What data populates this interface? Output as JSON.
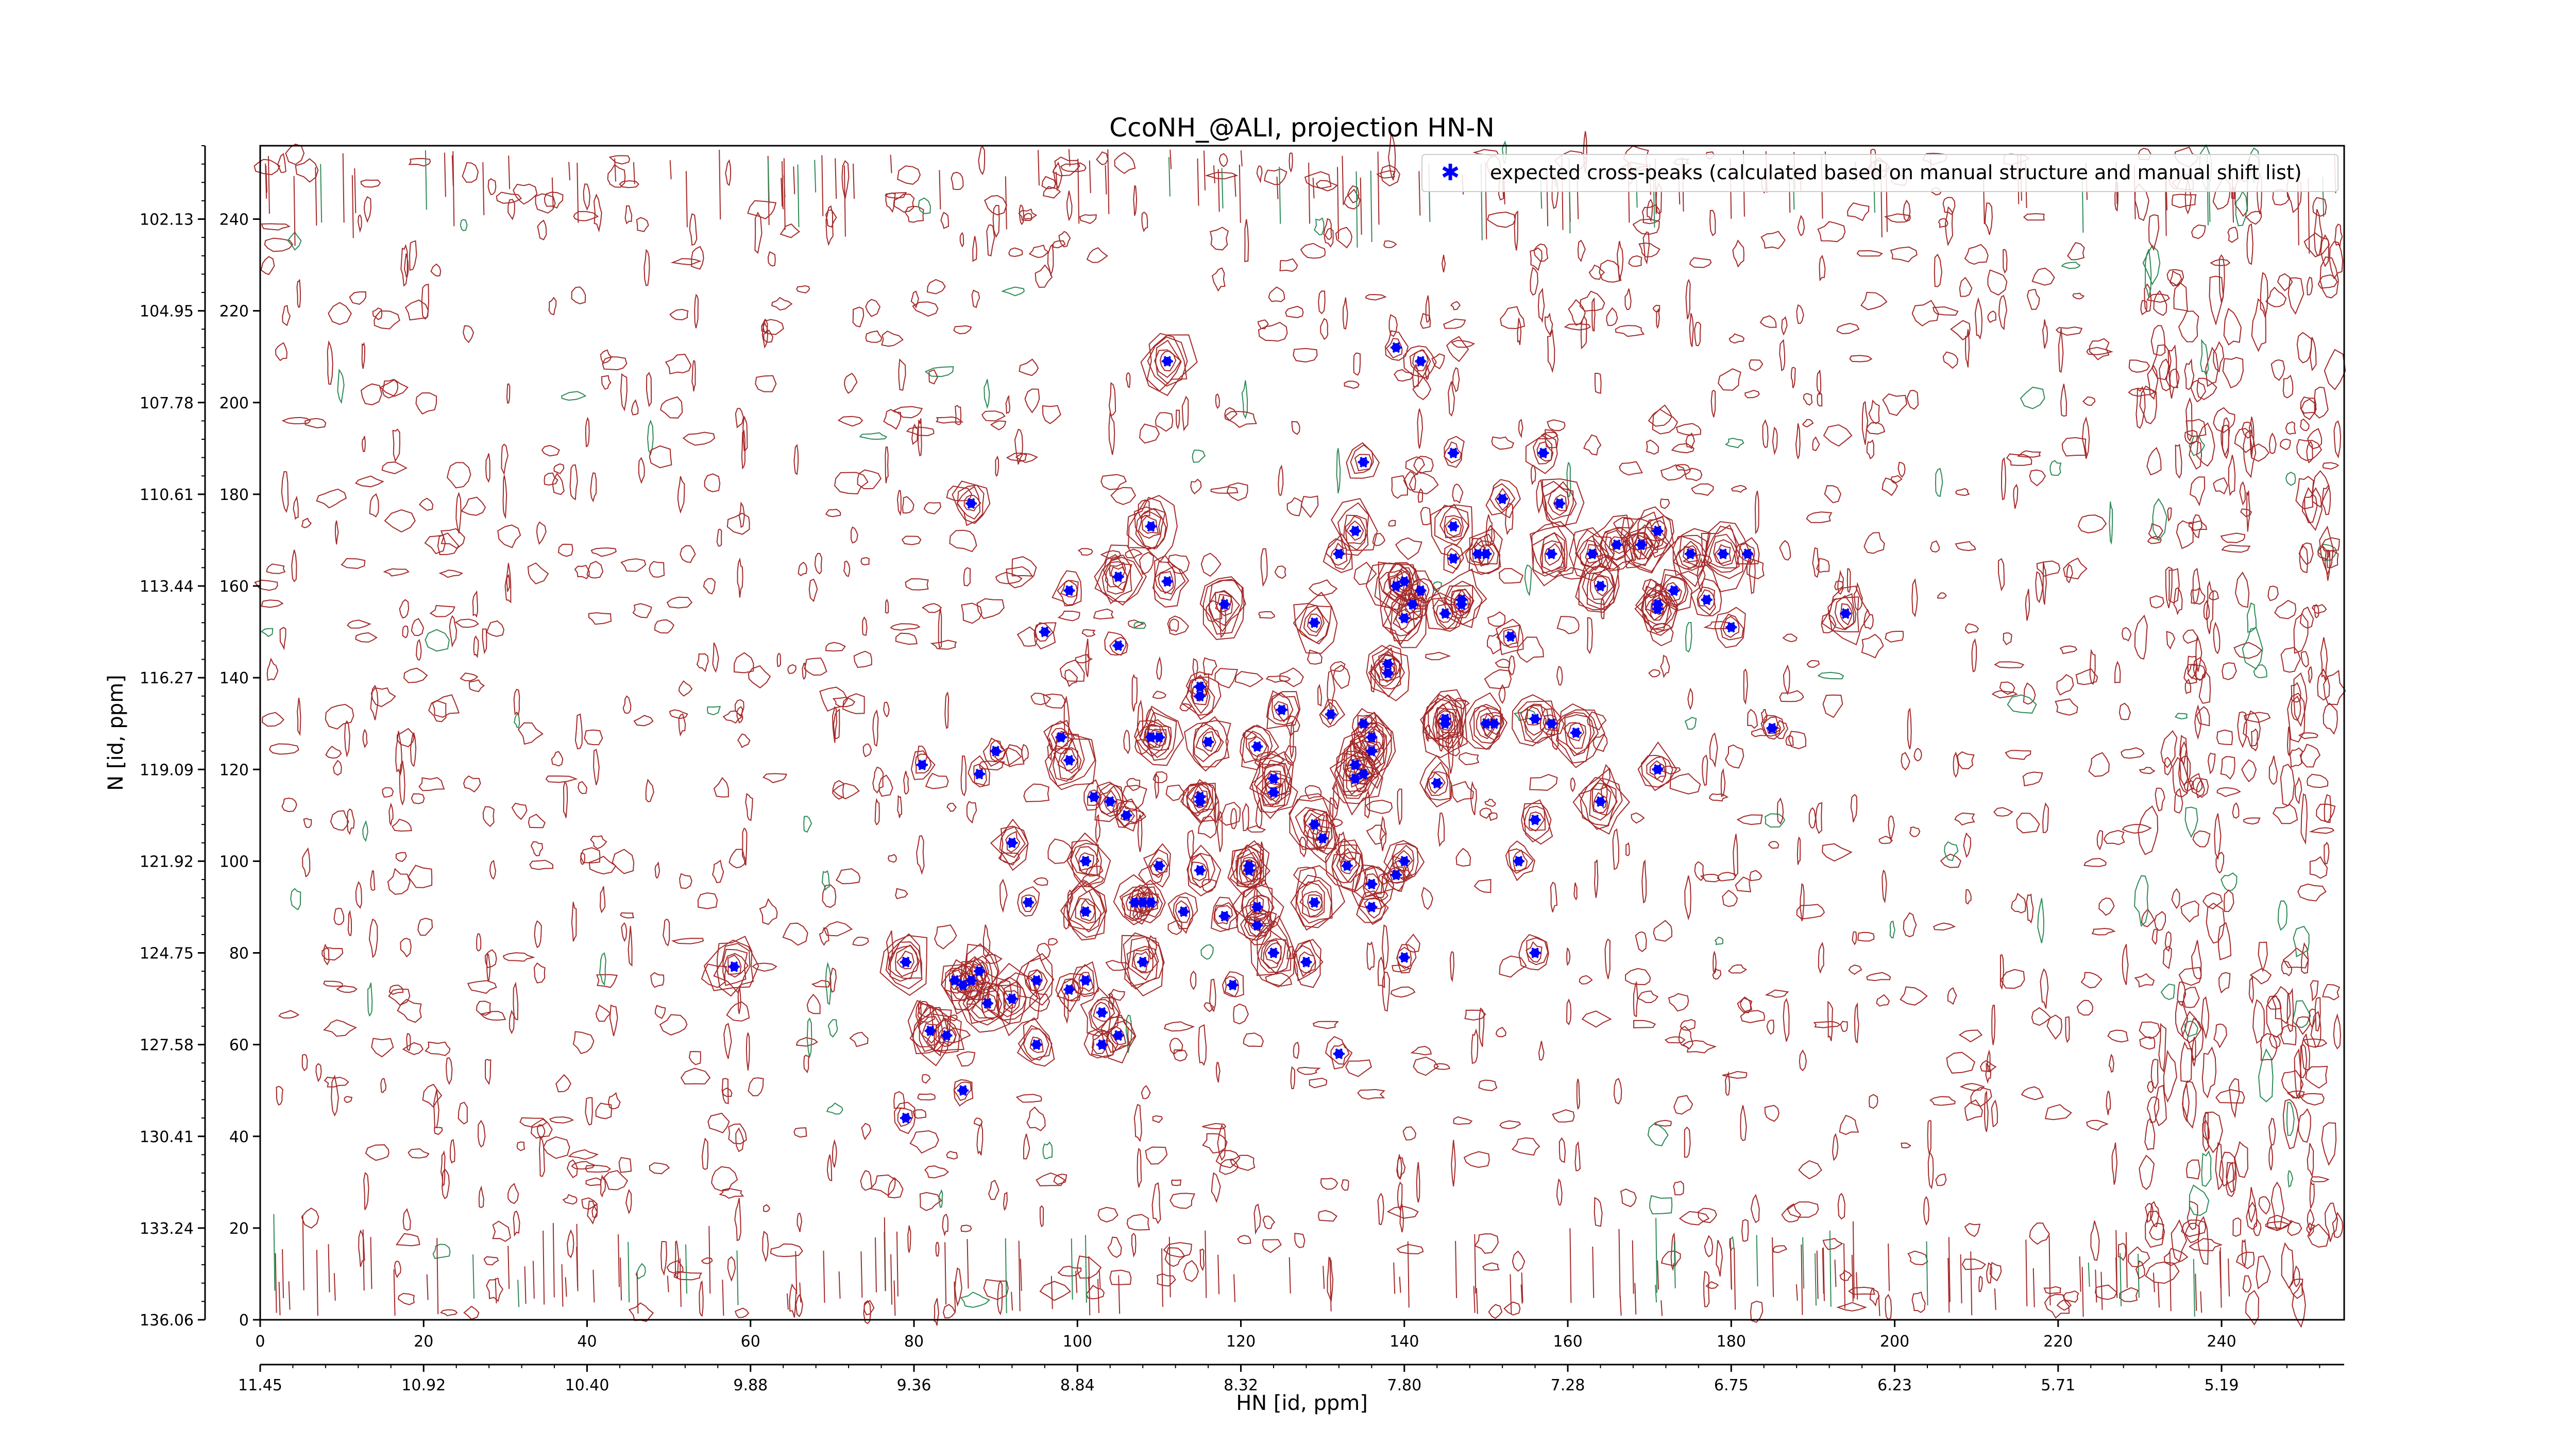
{
  "chart_data": {
    "type": "scatter",
    "title": "CcoNH_@ALI, projection HN-N",
    "xlabel": "HN [id, ppm]",
    "ylabel": "N [id, ppm]",
    "x_index_ticks": [
      "0",
      "20",
      "40",
      "60",
      "80",
      "100",
      "120",
      "140",
      "160",
      "180",
      "200",
      "220",
      "240"
    ],
    "x_ppm_ticks": [
      "11.45",
      "10.92",
      "10.40",
      "9.88",
      "9.36",
      "8.84",
      "8.32",
      "7.80",
      "7.28",
      "6.75",
      "6.23",
      "5.71",
      "5.19"
    ],
    "y_index_ticks": [
      "0",
      "20",
      "40",
      "60",
      "80",
      "100",
      "120",
      "140",
      "160",
      "180",
      "200",
      "220",
      "240"
    ],
    "y_ppm_ticks": [
      "136.06",
      "133.24",
      "130.41",
      "127.58",
      "124.75",
      "121.92",
      "119.09",
      "116.27",
      "113.44",
      "110.61",
      "107.78",
      "104.95",
      "102.13"
    ],
    "xlim": [
      0,
      255
    ],
    "ylim": [
      0,
      256
    ],
    "legend": {
      "label": "expected cross-peaks (calculated based on manual structure and manual shift list)",
      "placement": "top-right"
    },
    "colors": {
      "peaks": "#0000ff",
      "positive_contours": "#a52a2a",
      "negative_contours": "#2e8b57"
    },
    "series": [
      {
        "name": "expected cross-peaks (calculated based on manual structure and manual shift list)",
        "points": [
          [
            111,
            209
          ],
          [
            139,
            212
          ],
          [
            142,
            209
          ],
          [
            87,
            178
          ],
          [
            109,
            173
          ],
          [
            135,
            187
          ],
          [
            146,
            189
          ],
          [
            152,
            179
          ],
          [
            157,
            189
          ],
          [
            159,
            178
          ],
          [
            146,
            173
          ],
          [
            132,
            167
          ],
          [
            134,
            172
          ],
          [
            146,
            166
          ],
          [
            149,
            167
          ],
          [
            150,
            167
          ],
          [
            158,
            167
          ],
          [
            163,
            167
          ],
          [
            166,
            169
          ],
          [
            169,
            169
          ],
          [
            171,
            172
          ],
          [
            175,
            167
          ],
          [
            179,
            167
          ],
          [
            182,
            167
          ],
          [
            99,
            159
          ],
          [
            105,
            162
          ],
          [
            111,
            161
          ],
          [
            118,
            156
          ],
          [
            129,
            152
          ],
          [
            139,
            160
          ],
          [
            140,
            161
          ],
          [
            141,
            156
          ],
          [
            140,
            153
          ],
          [
            142,
            159
          ],
          [
            147,
            157
          ],
          [
            147,
            156
          ],
          [
            145,
            154
          ],
          [
            164,
            160
          ],
          [
            171,
            156
          ],
          [
            173,
            159
          ],
          [
            171,
            155
          ],
          [
            177,
            157
          ],
          [
            180,
            151
          ],
          [
            194,
            154
          ],
          [
            96,
            150
          ],
          [
            105,
            147
          ],
          [
            153,
            149
          ],
          [
            138,
            143
          ],
          [
            138,
            141
          ],
          [
            115,
            138
          ],
          [
            115,
            136
          ],
          [
            125,
            133
          ],
          [
            131,
            132
          ],
          [
            135,
            130
          ],
          [
            145,
            131
          ],
          [
            145,
            130
          ],
          [
            150,
            130
          ],
          [
            151,
            130
          ],
          [
            156,
            131
          ],
          [
            158,
            130
          ],
          [
            161,
            128
          ],
          [
            185,
            129
          ],
          [
            98,
            127
          ],
          [
            109,
            127
          ],
          [
            110,
            127
          ],
          [
            116,
            126
          ],
          [
            122,
            125
          ],
          [
            136,
            127
          ],
          [
            136,
            124
          ],
          [
            135,
            119
          ],
          [
            134,
            121
          ],
          [
            134,
            118
          ],
          [
            81,
            121
          ],
          [
            88,
            119
          ],
          [
            90,
            124
          ],
          [
            99,
            122
          ],
          [
            124,
            118
          ],
          [
            124,
            115
          ],
          [
            144,
            117
          ],
          [
            156,
            109
          ],
          [
            164,
            113
          ],
          [
            171,
            120
          ],
          [
            102,
            114
          ],
          [
            104,
            113
          ],
          [
            106,
            110
          ],
          [
            115,
            114
          ],
          [
            115,
            113
          ],
          [
            129,
            108
          ],
          [
            92,
            104
          ],
          [
            101,
            100
          ],
          [
            110,
            99
          ],
          [
            115,
            98
          ],
          [
            121,
            98
          ],
          [
            121,
            99
          ],
          [
            130,
            105
          ],
          [
            133,
            99
          ],
          [
            140,
            100
          ],
          [
            139,
            97
          ],
          [
            154,
            100
          ],
          [
            94,
            91
          ],
          [
            101,
            89
          ],
          [
            107,
            91
          ],
          [
            108,
            91
          ],
          [
            109,
            91
          ],
          [
            113,
            89
          ],
          [
            118,
            88
          ],
          [
            122,
            90
          ],
          [
            122,
            86
          ],
          [
            129,
            91
          ],
          [
            136,
            95
          ],
          [
            136,
            90
          ],
          [
            58,
            77
          ],
          [
            79,
            78
          ],
          [
            88,
            76
          ],
          [
            87,
            74
          ],
          [
            86,
            73
          ],
          [
            85,
            74
          ],
          [
            95,
            74
          ],
          [
            101,
            74
          ],
          [
            99,
            72
          ],
          [
            108,
            78
          ],
          [
            119,
            73
          ],
          [
            124,
            80
          ],
          [
            128,
            78
          ],
          [
            140,
            79
          ],
          [
            156,
            80
          ],
          [
            89,
            69
          ],
          [
            92,
            70
          ],
          [
            103,
            67
          ],
          [
            82,
            63
          ],
          [
            84,
            62
          ],
          [
            95,
            60
          ],
          [
            103,
            60
          ],
          [
            105,
            62
          ],
          [
            86,
            50
          ],
          [
            79,
            44
          ],
          [
            132,
            58
          ]
        ]
      }
    ]
  }
}
